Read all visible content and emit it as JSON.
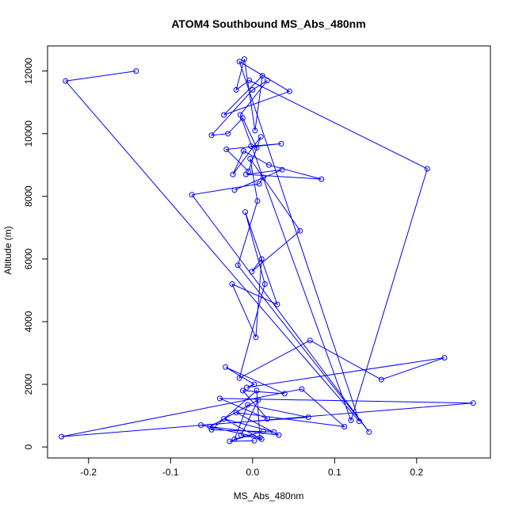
{
  "chart_data": {
    "type": "scatter",
    "title": "ATOM4 Southbound MS_Abs_480nm",
    "xlabel": "MS_Abs_480nm",
    "ylabel": "Altitude (m)",
    "xlim": [
      -0.25,
      0.29
    ],
    "ylim": [
      -350,
      12800
    ],
    "xticks": [
      -0.2,
      -0.1,
      0.0,
      0.1,
      0.2
    ],
    "xtick_labels": [
      "-0.2",
      "-0.1",
      "0.0",
      "0.1",
      "0.2"
    ],
    "yticks": [
      0,
      2000,
      4000,
      6000,
      8000,
      10000,
      12000
    ],
    "ytick_labels": [
      "0",
      "2000",
      "4000",
      "6000",
      "8000",
      "10000",
      "12000"
    ],
    "grid": false,
    "legend": "none",
    "color": "#0000ff",
    "marker": "open-circle",
    "connect_points": true,
    "series": [
      {
        "x": [
          -0.142,
          -0.228,
          0.13,
          -0.016,
          0.045,
          -0.035,
          0.012,
          0.003,
          -0.01,
          -0.02,
          -0.004,
          0.213,
          0.12,
          -0.015,
          0.018,
          0.0,
          -0.05,
          -0.03,
          -0.012,
          0.005,
          -0.002,
          0.035,
          -0.032,
          -0.005,
          0.01,
          -0.024,
          -0.011,
          0.02,
          0.084,
          -0.008,
          0.036,
          -0.022,
          0.013,
          0.008,
          -0.074,
          0.142,
          -0.018,
          0.006,
          -0.003,
          0.058,
          -0.001,
          0.011,
          0.004,
          -0.025,
          0.03,
          -0.009,
          0.015,
          -0.016,
          0.07,
          0.157,
          0.234,
          -0.007,
          0.002,
          -0.033,
          0.039,
          -0.012,
          0.018,
          -0.04,
          0.269,
          -0.233,
          0.06,
          0.112,
          -0.02,
          0.032,
          -0.052,
          0.007,
          -0.014,
          0.011,
          -0.035,
          0.026,
          -0.05,
          0.005,
          0.009,
          -0.063,
          0.068,
          -0.006,
          -0.022,
          0.013,
          -0.028,
          0.002
        ],
        "y": [
          12000,
          11680,
          820,
          12300,
          11350,
          10600,
          11850,
          10100,
          12380,
          11400,
          11700,
          8880,
          850,
          10600,
          11700,
          11400,
          9950,
          10000,
          10500,
          9550,
          9600,
          9680,
          9500,
          8800,
          9900,
          8700,
          9450,
          9000,
          8550,
          8700,
          8850,
          8200,
          8600,
          8400,
          8050,
          480,
          5800,
          7850,
          9200,
          6900,
          5600,
          6000,
          3500,
          5200,
          4550,
          7500,
          5200,
          2200,
          3400,
          2150,
          2850,
          1900,
          2000,
          2550,
          1700,
          1800,
          900,
          1550,
          1400,
          330,
          1850,
          650,
          1100,
          380,
          650,
          1500,
          380,
          250,
          900,
          480,
          550,
          1800,
          300,
          700,
          950,
          1350,
          250,
          500,
          180,
          200
        ]
      }
    ]
  }
}
